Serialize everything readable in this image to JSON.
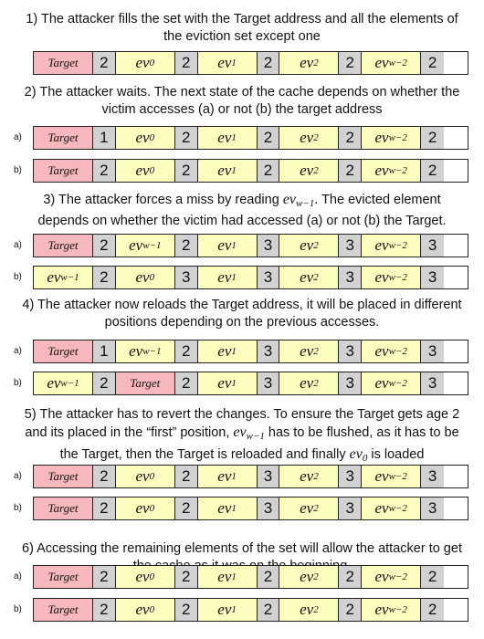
{
  "colors": {
    "target": "#f6b8bd",
    "eviction": "#fdfdc0",
    "age": "#d2d2d2"
  },
  "steps": [
    {
      "caption": [
        "1) The attacker fills the set with the Target address and all the elements of",
        "the eviction set except one"
      ],
      "rows": [
        {
          "label": "",
          "cells": [
            [
              "Target",
              "pink"
            ],
            [
              "2",
              "age"
            ],
            [
              "ev|0",
              "yellow"
            ],
            [
              "2",
              "age"
            ],
            [
              "ev|1",
              "yellow"
            ],
            [
              "2",
              "age"
            ],
            [
              "ev|2",
              "yellow"
            ],
            [
              "2",
              "age"
            ],
            [
              "ev|w−2",
              "yellow"
            ],
            [
              "2",
              "age"
            ]
          ]
        }
      ]
    },
    {
      "caption": [
        "2) The attacker waits. The next state of the cache depends on whether the",
        "victim accesses (a) or not (b) the target address"
      ],
      "rows": [
        {
          "label": "a)",
          "cells": [
            [
              "Target",
              "pink"
            ],
            [
              "1",
              "age"
            ],
            [
              "ev|0",
              "yellow"
            ],
            [
              "2",
              "age"
            ],
            [
              "ev|1",
              "yellow"
            ],
            [
              "2",
              "age"
            ],
            [
              "ev|2",
              "yellow"
            ],
            [
              "2",
              "age"
            ],
            [
              "ev|w−2",
              "yellow"
            ],
            [
              "2",
              "age"
            ]
          ]
        },
        {
          "label": "b)",
          "cells": [
            [
              "Target",
              "pink"
            ],
            [
              "2",
              "age"
            ],
            [
              "ev|0",
              "yellow"
            ],
            [
              "2",
              "age"
            ],
            [
              "ev|1",
              "yellow"
            ],
            [
              "2",
              "age"
            ],
            [
              "ev|2",
              "yellow"
            ],
            [
              "2",
              "age"
            ],
            [
              "ev|w−2",
              "yellow"
            ],
            [
              "2",
              "age"
            ]
          ]
        }
      ]
    },
    {
      "caption": [
        "3) The attacker forces a miss by reading {ev|w−1}. The evicted element",
        "depends on whether the victim had accessed (a) or not (b) the Target."
      ],
      "rows": [
        {
          "label": "a)",
          "cells": [
            [
              "Target",
              "pink"
            ],
            [
              "2",
              "age"
            ],
            [
              "ev|w−1",
              "yellow"
            ],
            [
              "2",
              "age"
            ],
            [
              "ev|1",
              "yellow"
            ],
            [
              "3",
              "age"
            ],
            [
              "ev|2",
              "yellow"
            ],
            [
              "3",
              "age"
            ],
            [
              "ev|w−2",
              "yellow"
            ],
            [
              "3",
              "age"
            ]
          ]
        },
        {
          "label": "b)",
          "cells": [
            [
              "ev|w−1",
              "yellow"
            ],
            [
              "2",
              "age"
            ],
            [
              "ev|0",
              "yellow"
            ],
            [
              "3",
              "age"
            ],
            [
              "ev|1",
              "yellow"
            ],
            [
              "3",
              "age"
            ],
            [
              "ev|2",
              "yellow"
            ],
            [
              "3",
              "age"
            ],
            [
              "ev|w−2",
              "yellow"
            ],
            [
              "3",
              "age"
            ]
          ]
        }
      ]
    },
    {
      "caption": [
        "4) The attacker now reloads the Target address, it will be placed in different",
        "positions depending on the previous accesses."
      ],
      "rows": [
        {
          "label": "a)",
          "cells": [
            [
              "Target",
              "pink"
            ],
            [
              "1",
              "age"
            ],
            [
              "ev|w−1",
              "yellow"
            ],
            [
              "2",
              "age"
            ],
            [
              "ev|1",
              "yellow"
            ],
            [
              "3",
              "age"
            ],
            [
              "ev|2",
              "yellow"
            ],
            [
              "3",
              "age"
            ],
            [
              "ev|w−2",
              "yellow"
            ],
            [
              "3",
              "age"
            ]
          ]
        },
        {
          "label": "b)",
          "cells": [
            [
              "ev|w−1",
              "yellow"
            ],
            [
              "2",
              "age"
            ],
            [
              "Target",
              "pink"
            ],
            [
              "2",
              "age"
            ],
            [
              "ev|1",
              "yellow"
            ],
            [
              "3",
              "age"
            ],
            [
              "ev|2",
              "yellow"
            ],
            [
              "3",
              "age"
            ],
            [
              "ev|w−2",
              "yellow"
            ],
            [
              "3",
              "age"
            ]
          ]
        }
      ]
    },
    {
      "caption": [
        "5) The attacker has to revert the changes. To ensure the Target gets age 2",
        "and its placed in the “first” position, {ev|w−1} has to be flushed, as it has to be",
        "the Target, then the Target is reloaded and finally {ev|0} is loaded"
      ],
      "rows": [
        {
          "label": "a)",
          "cells": [
            [
              "Target",
              "pink"
            ],
            [
              "2",
              "age"
            ],
            [
              "ev|0",
              "yellow"
            ],
            [
              "2",
              "age"
            ],
            [
              "ev|1",
              "yellow"
            ],
            [
              "3",
              "age"
            ],
            [
              "ev|2",
              "yellow"
            ],
            [
              "3",
              "age"
            ],
            [
              "ev|w−2",
              "yellow"
            ],
            [
              "3",
              "age"
            ]
          ]
        },
        {
          "label": "b)",
          "cells": [
            [
              "Target",
              "pink"
            ],
            [
              "2",
              "age"
            ],
            [
              "ev|0",
              "yellow"
            ],
            [
              "2",
              "age"
            ],
            [
              "ev|1",
              "yellow"
            ],
            [
              "3",
              "age"
            ],
            [
              "ev|2",
              "yellow"
            ],
            [
              "3",
              "age"
            ],
            [
              "ev|w−2",
              "yellow"
            ],
            [
              "3",
              "age"
            ]
          ]
        }
      ]
    },
    {
      "caption": [
        "6) Accessing the remaining elements of the set will allow the attacker to get",
        "the cache as it was on the beginning."
      ],
      "rows": [
        {
          "label": "a)",
          "cells": [
            [
              "Target",
              "pink"
            ],
            [
              "2",
              "age"
            ],
            [
              "ev|0",
              "yellow"
            ],
            [
              "2",
              "age"
            ],
            [
              "ev|1",
              "yellow"
            ],
            [
              "2",
              "age"
            ],
            [
              "ev|2",
              "yellow"
            ],
            [
              "2",
              "age"
            ],
            [
              "ev|w−2",
              "yellow"
            ],
            [
              "2",
              "age"
            ]
          ]
        },
        {
          "label": "b)",
          "cells": [
            [
              "Target",
              "pink"
            ],
            [
              "2",
              "age"
            ],
            [
              "ev|0",
              "yellow"
            ],
            [
              "2",
              "age"
            ],
            [
              "ev|1",
              "yellow"
            ],
            [
              "2",
              "age"
            ],
            [
              "ev|2",
              "yellow"
            ],
            [
              "2",
              "age"
            ],
            [
              "ev|w−2",
              "yellow"
            ],
            [
              "2",
              "age"
            ]
          ]
        }
      ]
    }
  ]
}
